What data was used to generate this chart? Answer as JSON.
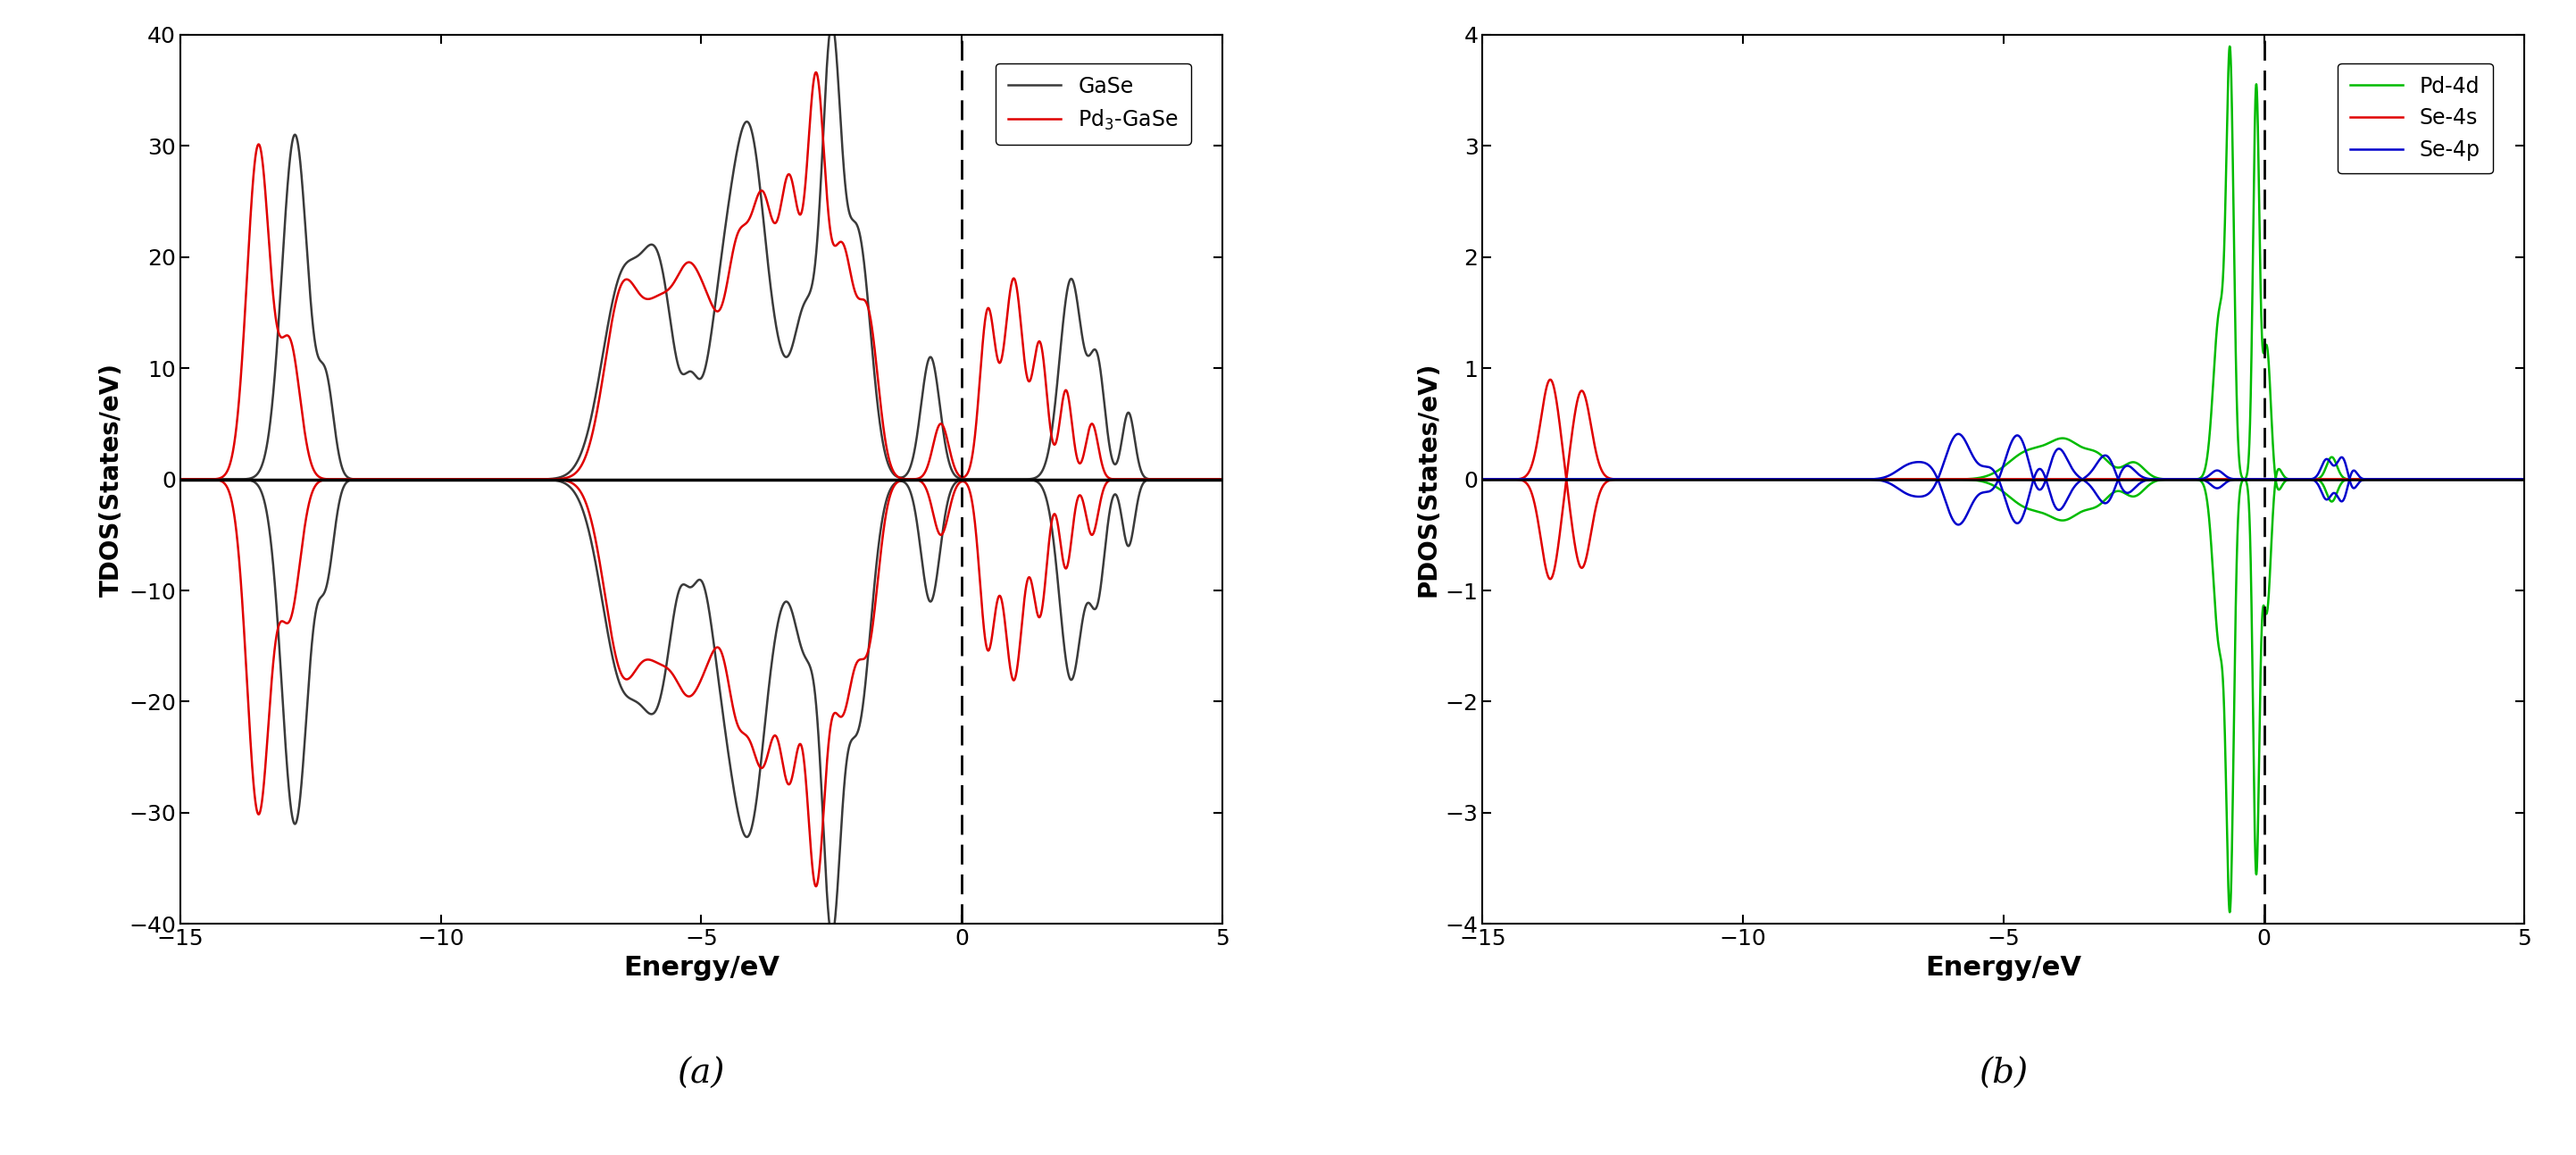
{
  "fig_width": 28.85,
  "fig_height": 12.93,
  "panel_a": {
    "xlim": [
      -15,
      5
    ],
    "ylim": [
      -40,
      40
    ],
    "xlabel": "Energy/eV",
    "ylabel": "TDOS(States/eV)",
    "xlabel_fontsize": 22,
    "ylabel_fontsize": 20,
    "tick_fontsize": 18,
    "legend_fontsize": 17,
    "label_a": "(a)",
    "label_fontsize": 28,
    "dashed_x": 0,
    "GaSe_color": "#3a3a3a",
    "Pd3GaSe_color": "#e00000"
  },
  "panel_b": {
    "xlim": [
      -15,
      5
    ],
    "ylim": [
      -4,
      4
    ],
    "xlabel": "Energy/eV",
    "ylabel": "PDOS(States/eV)",
    "xlabel_fontsize": 22,
    "ylabel_fontsize": 20,
    "tick_fontsize": 18,
    "legend_fontsize": 17,
    "label_b": "(b)",
    "label_fontsize": 28,
    "dashed_x": 0,
    "Pd4d_color": "#00bb00",
    "Se4s_color": "#e00000",
    "Se4p_color": "#0000cc"
  }
}
